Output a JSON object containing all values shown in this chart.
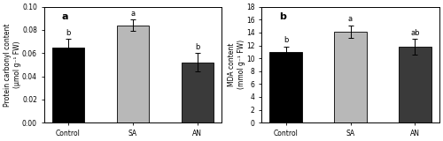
{
  "panel_a": {
    "label": "a",
    "categories": [
      "Control",
      "SA",
      "AN"
    ],
    "values": [
      0.065,
      0.084,
      0.052
    ],
    "errors": [
      0.007,
      0.005,
      0.008
    ],
    "bar_colors": [
      "#000000",
      "#b8b8b8",
      "#3a3a3a"
    ],
    "sig_labels": [
      "b",
      "a",
      "b"
    ],
    "ylabel": "Protein carbonyl content\n(μmol g⁻¹ FW)",
    "ylim": [
      0,
      0.1
    ],
    "yticks": [
      0.0,
      0.02,
      0.04,
      0.06,
      0.08,
      0.1
    ]
  },
  "panel_b": {
    "label": "b",
    "categories": [
      "Control",
      "SA",
      "AN"
    ],
    "values": [
      11.0,
      14.1,
      11.8
    ],
    "errors": [
      0.8,
      1.0,
      1.2
    ],
    "bar_colors": [
      "#000000",
      "#b8b8b8",
      "#3a3a3a"
    ],
    "sig_labels": [
      "b",
      "a",
      "ab"
    ],
    "ylabel": "MDA content\n(mmol g⁻¹ FW)",
    "ylim": [
      0,
      18
    ],
    "yticks": [
      0,
      2,
      4,
      6,
      8,
      10,
      12,
      14,
      16,
      18
    ]
  }
}
